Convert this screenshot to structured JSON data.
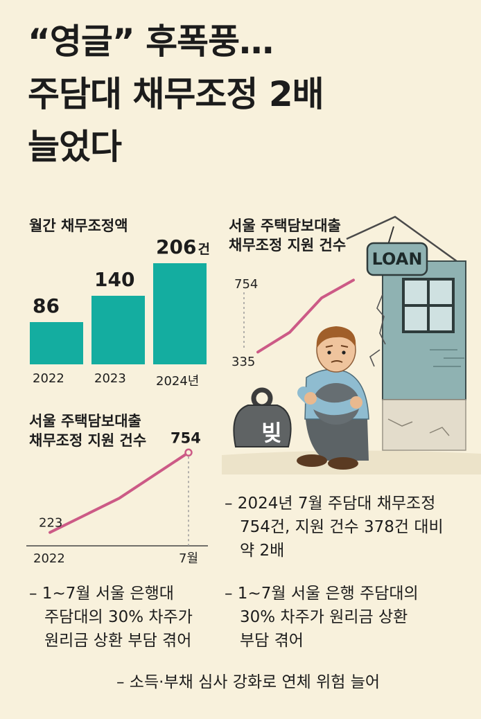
{
  "title": {
    "line1": "“영글” 후폭풍…",
    "line2": "주담대 채무조정 2배",
    "line3": "늘었다"
  },
  "bar_chart": {
    "title": "월간 채무조정액",
    "unit": "건"
  },
  "line_chart_left": {
    "title_line1": "서울 주택담보대출",
    "title_line2": "채무조정 지원 건수"
  },
  "line_chart_right": {
    "title_line1": "서울 주택담보대출",
    "title_line2": "채무조정 지원 건수"
  },
  "chart_data": [
    {
      "type": "bar",
      "title": "월간 채무조정액",
      "categories": [
        "2022",
        "2023",
        "2024년"
      ],
      "values": [
        86,
        140,
        206
      ],
      "unit": "건",
      "color": "#14ada0"
    },
    {
      "type": "line",
      "title": "서울 주택담보대출 채무조정 지원 건수",
      "x": [
        "2022",
        "",
        "7월"
      ],
      "y": [
        223,
        450,
        754
      ],
      "start_label": "223",
      "end_label": "754",
      "x_labels": [
        "2022",
        "7월"
      ],
      "color": "#cc5a86"
    },
    {
      "type": "line",
      "title": "서울 주택담보대출 채무조정 지원 건수",
      "y": [
        335,
        450,
        650,
        754
      ],
      "start_label": "335",
      "axis_label": "754",
      "color": "#cc5a86"
    }
  ],
  "illustration": {
    "loan_sign": "LOAN",
    "debt_weight": "빚"
  },
  "notes": {
    "right1": [
      "– 2024년 7월 주담대 채무조정",
      "754건, 지원 건수 378건 대비",
      "약 2배"
    ],
    "right2": [
      "– 1~7월 서울 은행 주담대의",
      "30% 차주가 원리금 상환",
      "부담 겪어"
    ],
    "left": [
      "– 1~7월 서울 은행대",
      "주담대의 30% 차주가",
      "원리금 상환 부담 겪어"
    ],
    "bottom": "– 소득·부채 심사 강화로 연체 위험 늘어"
  },
  "colors": {
    "background": "#f8f1dc",
    "teal": "#14ada0",
    "pink_line": "#cc5a86",
    "wall": "#8fb2b2"
  }
}
